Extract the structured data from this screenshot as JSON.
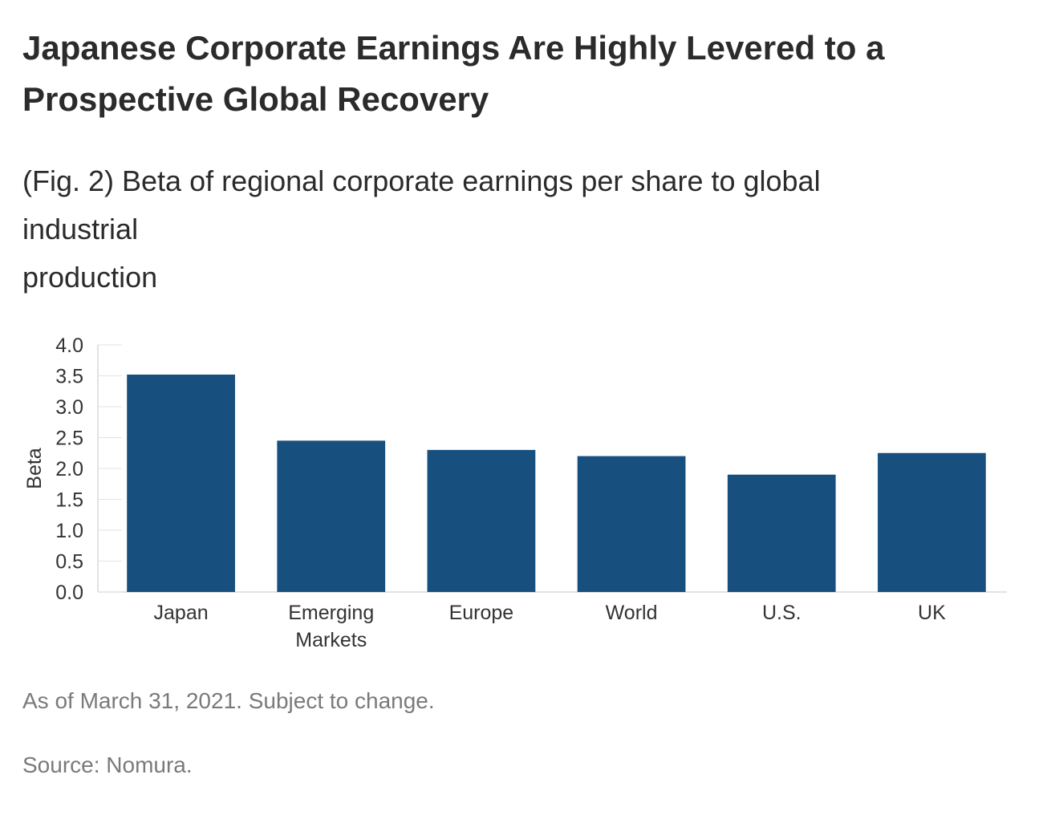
{
  "header": {
    "title_lines": [
      "Japanese Corporate Earnings Are Highly Levered to a",
      "Prospective Global Recovery"
    ],
    "subtitle_lines": [
      "(Fig. 2) Beta of regional corporate earnings per share to global",
      "industrial",
      "production"
    ]
  },
  "chart_data": {
    "type": "bar",
    "categories": [
      [
        "Japan"
      ],
      [
        "Emerging",
        "Markets"
      ],
      [
        "Europe"
      ],
      [
        "World"
      ],
      [
        "U.S."
      ],
      [
        "UK"
      ]
    ],
    "values": [
      3.52,
      2.45,
      2.3,
      2.2,
      1.9,
      2.25
    ],
    "ylabel": "Beta",
    "ylim": [
      0,
      4.0
    ],
    "yticks": [
      "0.0",
      "0.5",
      "1.0",
      "1.5",
      "2.0",
      "2.5",
      "3.0",
      "3.5",
      "4.0"
    ],
    "bar_color": "#17507e",
    "grid": false,
    "legend": "none"
  },
  "footer": {
    "note": "As of March 31, 2021. Subject to change.",
    "source": "Source: Nomura."
  }
}
